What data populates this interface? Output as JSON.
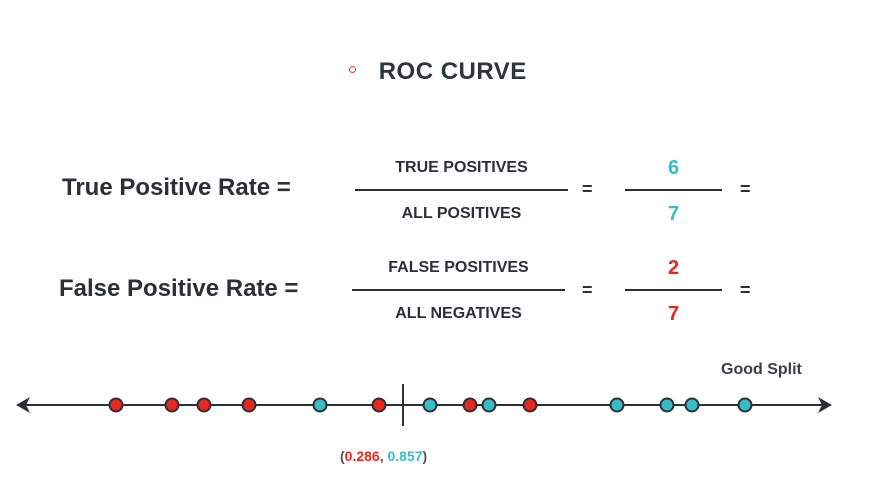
{
  "title": "ROC CURVE",
  "colors": {
    "red": "#e8281e",
    "teal": "#38bcc6",
    "dark": "#2b2f36"
  },
  "tpr": {
    "label": "True Positive Rate =",
    "numerator_text": "TRUE POSITIVES",
    "denominator_text": "ALL POSITIVES",
    "eq1": "=",
    "numerator_value": "6",
    "denominator_value": "7",
    "eq2": "="
  },
  "fpr": {
    "label": "False Positive Rate =",
    "numerator_text": "FALSE POSITIVES",
    "denominator_text": "ALL NEGATIVES",
    "eq1": "=",
    "numerator_value": "2",
    "denominator_value": "7",
    "eq2": "="
  },
  "line": {
    "caption": "Good Split",
    "points": [
      "red",
      "red",
      "red",
      "red",
      "teal",
      "red",
      "teal",
      "red",
      "teal",
      "red",
      "teal",
      "teal",
      "teal",
      "teal"
    ],
    "coord": {
      "open": "(",
      "fpr": "0.286",
      "sep": ", ",
      "tpr": "0.857",
      "close": ")"
    }
  }
}
